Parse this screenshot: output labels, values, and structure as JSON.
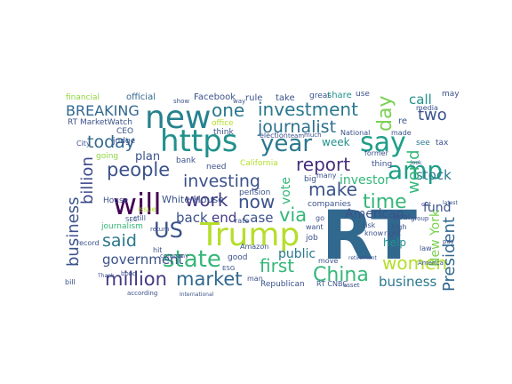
{
  "palette": {
    "dark_purple": "#440154",
    "indigo": "#3b528b",
    "blue": "#31688e",
    "teal": "#21918c",
    "green": "#35b779",
    "lime": "#90d743",
    "yellow": "#fde725"
  },
  "words": [
    {
      "text": "RT",
      "color": "#31688e"
    },
    {
      "text": "https",
      "color": "#21918c"
    },
    {
      "text": "new",
      "color": "#26828e"
    },
    {
      "text": "Trump",
      "color": "#b5de2b"
    },
    {
      "text": "say",
      "color": "#1f9e89"
    },
    {
      "text": "year",
      "color": "#2a788e"
    },
    {
      "text": "will",
      "color": "#440154"
    },
    {
      "text": "amp",
      "color": "#1f9e89"
    },
    {
      "text": "state",
      "color": "#35b779"
    },
    {
      "text": "market",
      "color": "#31688e"
    },
    {
      "text": "million",
      "color": "#443a83"
    },
    {
      "text": "people",
      "color": "#3b528b"
    },
    {
      "text": "China",
      "color": "#35b779"
    },
    {
      "text": "women",
      "color": "#b5de2b"
    },
    {
      "text": "US",
      "color": "#3b528b"
    },
    {
      "text": "investment",
      "color": "#2a788e"
    },
    {
      "text": "journalist",
      "color": "#2d708e"
    },
    {
      "text": "report",
      "color": "#472d7b"
    },
    {
      "text": "investing",
      "color": "#3b528b"
    },
    {
      "text": "today",
      "color": "#31688e"
    },
    {
      "text": "one",
      "color": "#2a788e"
    },
    {
      "text": "day",
      "color": "#7ad151"
    },
    {
      "text": "time",
      "color": "#35b779"
    },
    {
      "text": "make",
      "color": "#3b528b"
    },
    {
      "text": "via",
      "color": "#35b779"
    },
    {
      "text": "now",
      "color": "#3b528b"
    },
    {
      "text": "work",
      "color": "#443a83"
    },
    {
      "text": "said",
      "color": "#2a788e"
    },
    {
      "text": "government",
      "color": "#3b528b"
    },
    {
      "text": "BREAKING",
      "color": "#31688e"
    },
    {
      "text": "first",
      "color": "#35b779"
    },
    {
      "text": "billion",
      "color": "#3e4989"
    },
    {
      "text": "business",
      "color": "#2a788e"
    },
    {
      "text": "business",
      "color": "#3b528b"
    },
    {
      "text": "President",
      "color": "#31688e"
    },
    {
      "text": "world",
      "color": "#35b779"
    },
    {
      "text": "two",
      "color": "#3b528b"
    },
    {
      "text": "call",
      "color": "#21918c"
    },
    {
      "text": "New York",
      "color": "#7ad151"
    },
    {
      "text": "American",
      "color": "#3b528b"
    },
    {
      "text": "stock",
      "color": "#2a788e"
    },
    {
      "text": "fund",
      "color": "#3b528b"
    },
    {
      "text": "investor",
      "color": "#35b779"
    },
    {
      "text": "back",
      "color": "#3b528b"
    },
    {
      "text": "end",
      "color": "#443a83"
    },
    {
      "text": "case",
      "color": "#3b528b"
    },
    {
      "text": "vote",
      "color": "#35b779"
    },
    {
      "text": "public",
      "color": "#2a788e"
    },
    {
      "text": "plan",
      "color": "#3b528b"
    },
    {
      "text": "week",
      "color": "#21918c"
    },
    {
      "text": "help",
      "color": "#21918c"
    },
    {
      "text": "White House",
      "color": "#3b528b"
    },
    {
      "text": "RT MarketWatch",
      "color": "#3b528b"
    },
    {
      "text": "official",
      "color": "#31688e"
    },
    {
      "text": "Facebook",
      "color": "#3b528b"
    },
    {
      "text": "rule",
      "color": "#3b528b"
    },
    {
      "text": "take",
      "color": "#3b528b"
    },
    {
      "text": "great",
      "color": "#3b528b"
    },
    {
      "text": "share",
      "color": "#21918c"
    },
    {
      "text": "use",
      "color": "#3b528b"
    },
    {
      "text": "may",
      "color": "#3b528b"
    },
    {
      "text": "financial",
      "color": "#90d743"
    },
    {
      "text": "CEO",
      "color": "#3b528b"
    },
    {
      "text": "judge",
      "color": "#3b528b"
    },
    {
      "text": "office",
      "color": "#b5de2b"
    },
    {
      "text": "think",
      "color": "#3b528b"
    },
    {
      "text": "election",
      "color": "#3b528b"
    },
    {
      "text": "National",
      "color": "#3b528b"
    },
    {
      "text": "made",
      "color": "#3b528b"
    },
    {
      "text": "re",
      "color": "#3b528b"
    },
    {
      "text": "see",
      "color": "#2a788e"
    },
    {
      "text": "tax",
      "color": "#3b528b"
    },
    {
      "text": "going",
      "color": "#90d743"
    },
    {
      "text": "City",
      "color": "#3b528b"
    },
    {
      "text": "bank",
      "color": "#3b528b"
    },
    {
      "text": "need",
      "color": "#3b528b"
    },
    {
      "text": "California",
      "color": "#b5de2b"
    },
    {
      "text": "pension",
      "color": "#3b528b"
    },
    {
      "text": "big",
      "color": "#3b528b"
    },
    {
      "text": "many",
      "color": "#3b528b"
    },
    {
      "text": "companies",
      "color": "#3b528b"
    },
    {
      "text": "thing",
      "color": "#3b528b"
    },
    {
      "text": "former",
      "color": "#3b528b"
    },
    {
      "text": "know",
      "color": "#3b528b"
    },
    {
      "text": "right",
      "color": "#3b528b"
    },
    {
      "text": "deal",
      "color": "#3b528b"
    },
    {
      "text": "want",
      "color": "#3b528b"
    },
    {
      "text": "job",
      "color": "#3b528b"
    },
    {
      "text": "high",
      "color": "#3b528b"
    },
    {
      "text": "House",
      "color": "#3b528b"
    },
    {
      "text": "issue",
      "color": "#b5de2b"
    },
    {
      "text": "still",
      "color": "#3b528b"
    },
    {
      "text": "journalism",
      "color": "#35b779"
    },
    {
      "text": "record",
      "color": "#3b528b"
    },
    {
      "text": "hit",
      "color": "#3b528b"
    },
    {
      "text": "Amazon",
      "color": "#3b528b"
    },
    {
      "text": "good",
      "color": "#3b528b"
    },
    {
      "text": "rate",
      "color": "#3b528b"
    },
    {
      "text": "move",
      "color": "#3b528b"
    },
    {
      "text": "Republican",
      "color": "#3b528b"
    },
    {
      "text": "RT CNBC",
      "color": "#3b528b"
    },
    {
      "text": "company",
      "color": "#3b528b"
    },
    {
      "text": "SEC",
      "color": "#3b528b"
    },
    {
      "text": "return",
      "color": "#3b528b"
    },
    {
      "text": "bill",
      "color": "#3b528b"
    },
    {
      "text": "according",
      "color": "#3b528b"
    },
    {
      "text": "media",
      "color": "#3b528b"
    },
    {
      "text": "man",
      "color": "#3b528b"
    },
    {
      "text": "law",
      "color": "#3b528b"
    },
    {
      "text": "risk",
      "color": "#3b528b"
    },
    {
      "text": "go",
      "color": "#3b528b"
    },
    {
      "text": "bond",
      "color": "#3b528b"
    },
    {
      "text": "Thank",
      "color": "#3b528b"
    },
    {
      "text": "group",
      "color": "#3b528b"
    },
    {
      "text": "show",
      "color": "#3b528b"
    },
    {
      "text": "way",
      "color": "#3b528b"
    },
    {
      "text": "much",
      "color": "#3b528b"
    },
    {
      "text": "team",
      "color": "#3b528b"
    },
    {
      "text": "retirement",
      "color": "#3b528b"
    },
    {
      "text": "pay",
      "color": "#3b528b"
    },
    {
      "text": "International",
      "color": "#3b528b"
    },
    {
      "text": "ESG",
      "color": "#3b528b"
    },
    {
      "text": "asset",
      "color": "#3b528b"
    },
    {
      "text": "America",
      "color": "#3b528b"
    },
    {
      "text": "cut",
      "color": "#3b528b"
    },
    {
      "text": "look",
      "color": "#3b528b"
    },
    {
      "text": "latest",
      "color": "#3b528b"
    }
  ]
}
